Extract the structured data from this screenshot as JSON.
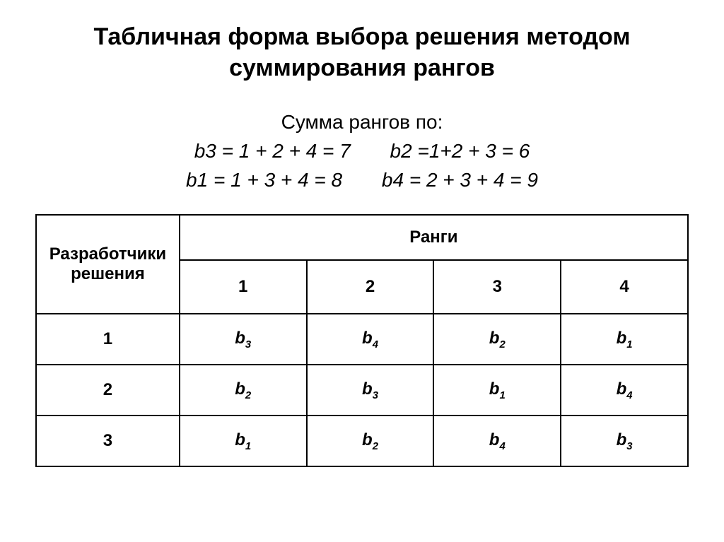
{
  "title_line1": "Табличная форма выбора решения методом",
  "title_line2": "суммирования рангов",
  "sums": {
    "lead": "Сумма рангов по:",
    "row1_left": "b3 = 1 + 2 + 4 = 7",
    "row1_right": "b2 =1+2 + 3 = 6",
    "row2_left": "b1 = 1 + 3 + 4 = 8",
    "row2_right": "b4 = 2 + 3 + 4 = 9"
  },
  "table": {
    "header_dev_line1": "Разработчики",
    "header_dev_line2": "решения",
    "header_ranks": "Ранги",
    "rank_headers": [
      "1",
      "2",
      "3",
      "4"
    ],
    "rows": [
      {
        "dev": "1",
        "cells": [
          {
            "b": "b",
            "s": "3"
          },
          {
            "b": "b",
            "s": "4"
          },
          {
            "b": "b",
            "s": "2"
          },
          {
            "b": "b",
            "s": "1"
          }
        ]
      },
      {
        "dev": "2",
        "cells": [
          {
            "b": "b",
            "s": "2"
          },
          {
            "b": "b",
            "s": "3"
          },
          {
            "b": "b",
            "s": "1"
          },
          {
            "b": "b",
            "s": "4"
          }
        ]
      },
      {
        "dev": "3",
        "cells": [
          {
            "b": "b",
            "s": "1"
          },
          {
            "b": "b",
            "s": "2"
          },
          {
            "b": "b",
            "s": "4"
          },
          {
            "b": "b",
            "s": "3"
          }
        ]
      }
    ],
    "border_color": "#000000",
    "font_color": "#000000",
    "columns": [
      "Разработчики решения",
      "1",
      "2",
      "3",
      "4"
    ]
  },
  "colors": {
    "background": "#ffffff",
    "text": "#000000",
    "border": "#000000"
  },
  "typography": {
    "title_fontsize_pt": 26,
    "body_fontsize_pt": 21,
    "table_fontsize_pt": 18,
    "title_weight": "bold",
    "sums_style": "italic"
  }
}
